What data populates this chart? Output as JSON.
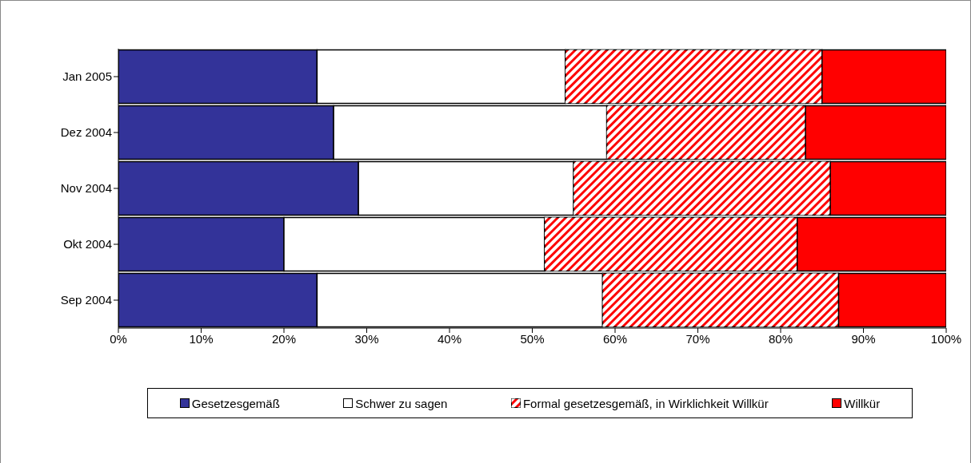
{
  "chart_data": {
    "type": "bar",
    "orientation": "horizontal",
    "stacked": true,
    "categories": [
      "Jan 2005",
      "Dez 2004",
      "Nov 2004",
      "Okt 2004",
      "Sep 2004"
    ],
    "series": [
      {
        "name": "Gesetzesgemäß",
        "color": "#333399",
        "values": [
          24,
          26,
          29,
          20,
          24
        ]
      },
      {
        "name": "Schwer zu sagen",
        "color": "#ffffff",
        "values": [
          30,
          33,
          26,
          31.5,
          34.5
        ]
      },
      {
        "name": "Formal gesetzesgemäß, in Wirklichkeit Willkür",
        "color": "#ff0000",
        "values": [
          31,
          24,
          31,
          30.5,
          28.5
        ]
      },
      {
        "name": "Willkür",
        "color": "#ff0000",
        "values": [
          15,
          17,
          14,
          18,
          13
        ]
      }
    ],
    "xlim": [
      0,
      100
    ],
    "xticks": [
      {
        "value": 0,
        "label": "0%"
      },
      {
        "value": 10,
        "label": "10%"
      },
      {
        "value": 20,
        "label": "20%"
      },
      {
        "value": 30,
        "label": "30%"
      },
      {
        "value": 40,
        "label": "40%"
      },
      {
        "value": 50,
        "label": "50%"
      },
      {
        "value": 60,
        "label": "60%"
      },
      {
        "value": 70,
        "label": "70%"
      },
      {
        "value": 80,
        "label": "80%"
      },
      {
        "value": 90,
        "label": "90%"
      },
      {
        "value": 100,
        "label": "100%"
      }
    ],
    "grid": false,
    "legend": "bottom"
  }
}
